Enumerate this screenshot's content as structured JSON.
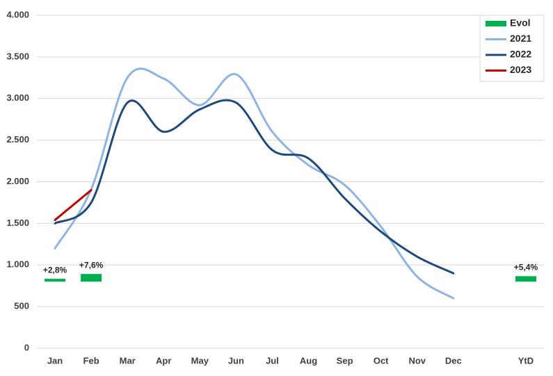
{
  "chart_data": {
    "type": "line",
    "categories": [
      "Jan",
      "Feb",
      "Mar",
      "Apr",
      "May",
      "Jun",
      "Jul",
      "Aug",
      "Sep",
      "Oct",
      "Nov",
      "Dec",
      null,
      "YtD"
    ],
    "ylim": [
      0,
      4000
    ],
    "yticks": [
      0,
      500,
      {
        "value": 1000,
        "label": "1.000"
      },
      {
        "value": 1500,
        "label": "1.500"
      },
      {
        "value": 2000,
        "label": "2.000"
      },
      {
        "value": 2500,
        "label": "2.500"
      },
      {
        "value": 3000,
        "label": "3.000"
      },
      {
        "value": 3500,
        "label": "3.500"
      },
      {
        "value": 4000,
        "label": "4.000"
      }
    ],
    "grid": true,
    "legend": "top-right",
    "series": [
      {
        "name": "Evol",
        "color": "#00b050",
        "values": [
          2.8,
          7.6,
          null,
          null,
          null,
          null,
          null,
          null,
          null,
          null,
          null,
          null,
          null,
          5.4
        ],
        "value_labels": [
          "+2,8%",
          "+7,6%",
          null,
          null,
          null,
          null,
          null,
          null,
          null,
          null,
          null,
          null,
          null,
          "+5,4%"
        ]
      },
      {
        "name": "2021",
        "color": "#8eb4e3",
        "values": [
          1200,
          1910,
          3250,
          3240,
          2920,
          3290,
          2600,
          2200,
          1960,
          1460,
          860,
          600,
          null,
          null
        ]
      },
      {
        "name": "2022",
        "color": "#1f497d",
        "values": [
          1500,
          1750,
          2950,
          2600,
          2870,
          2950,
          2380,
          2280,
          1800,
          1400,
          1100,
          900,
          null,
          null
        ]
      },
      {
        "name": "2023",
        "color": "#c00000",
        "values": [
          1540,
          1900,
          null,
          null,
          null,
          null,
          null,
          null,
          null,
          null,
          null,
          null,
          null,
          null
        ]
      }
    ]
  }
}
